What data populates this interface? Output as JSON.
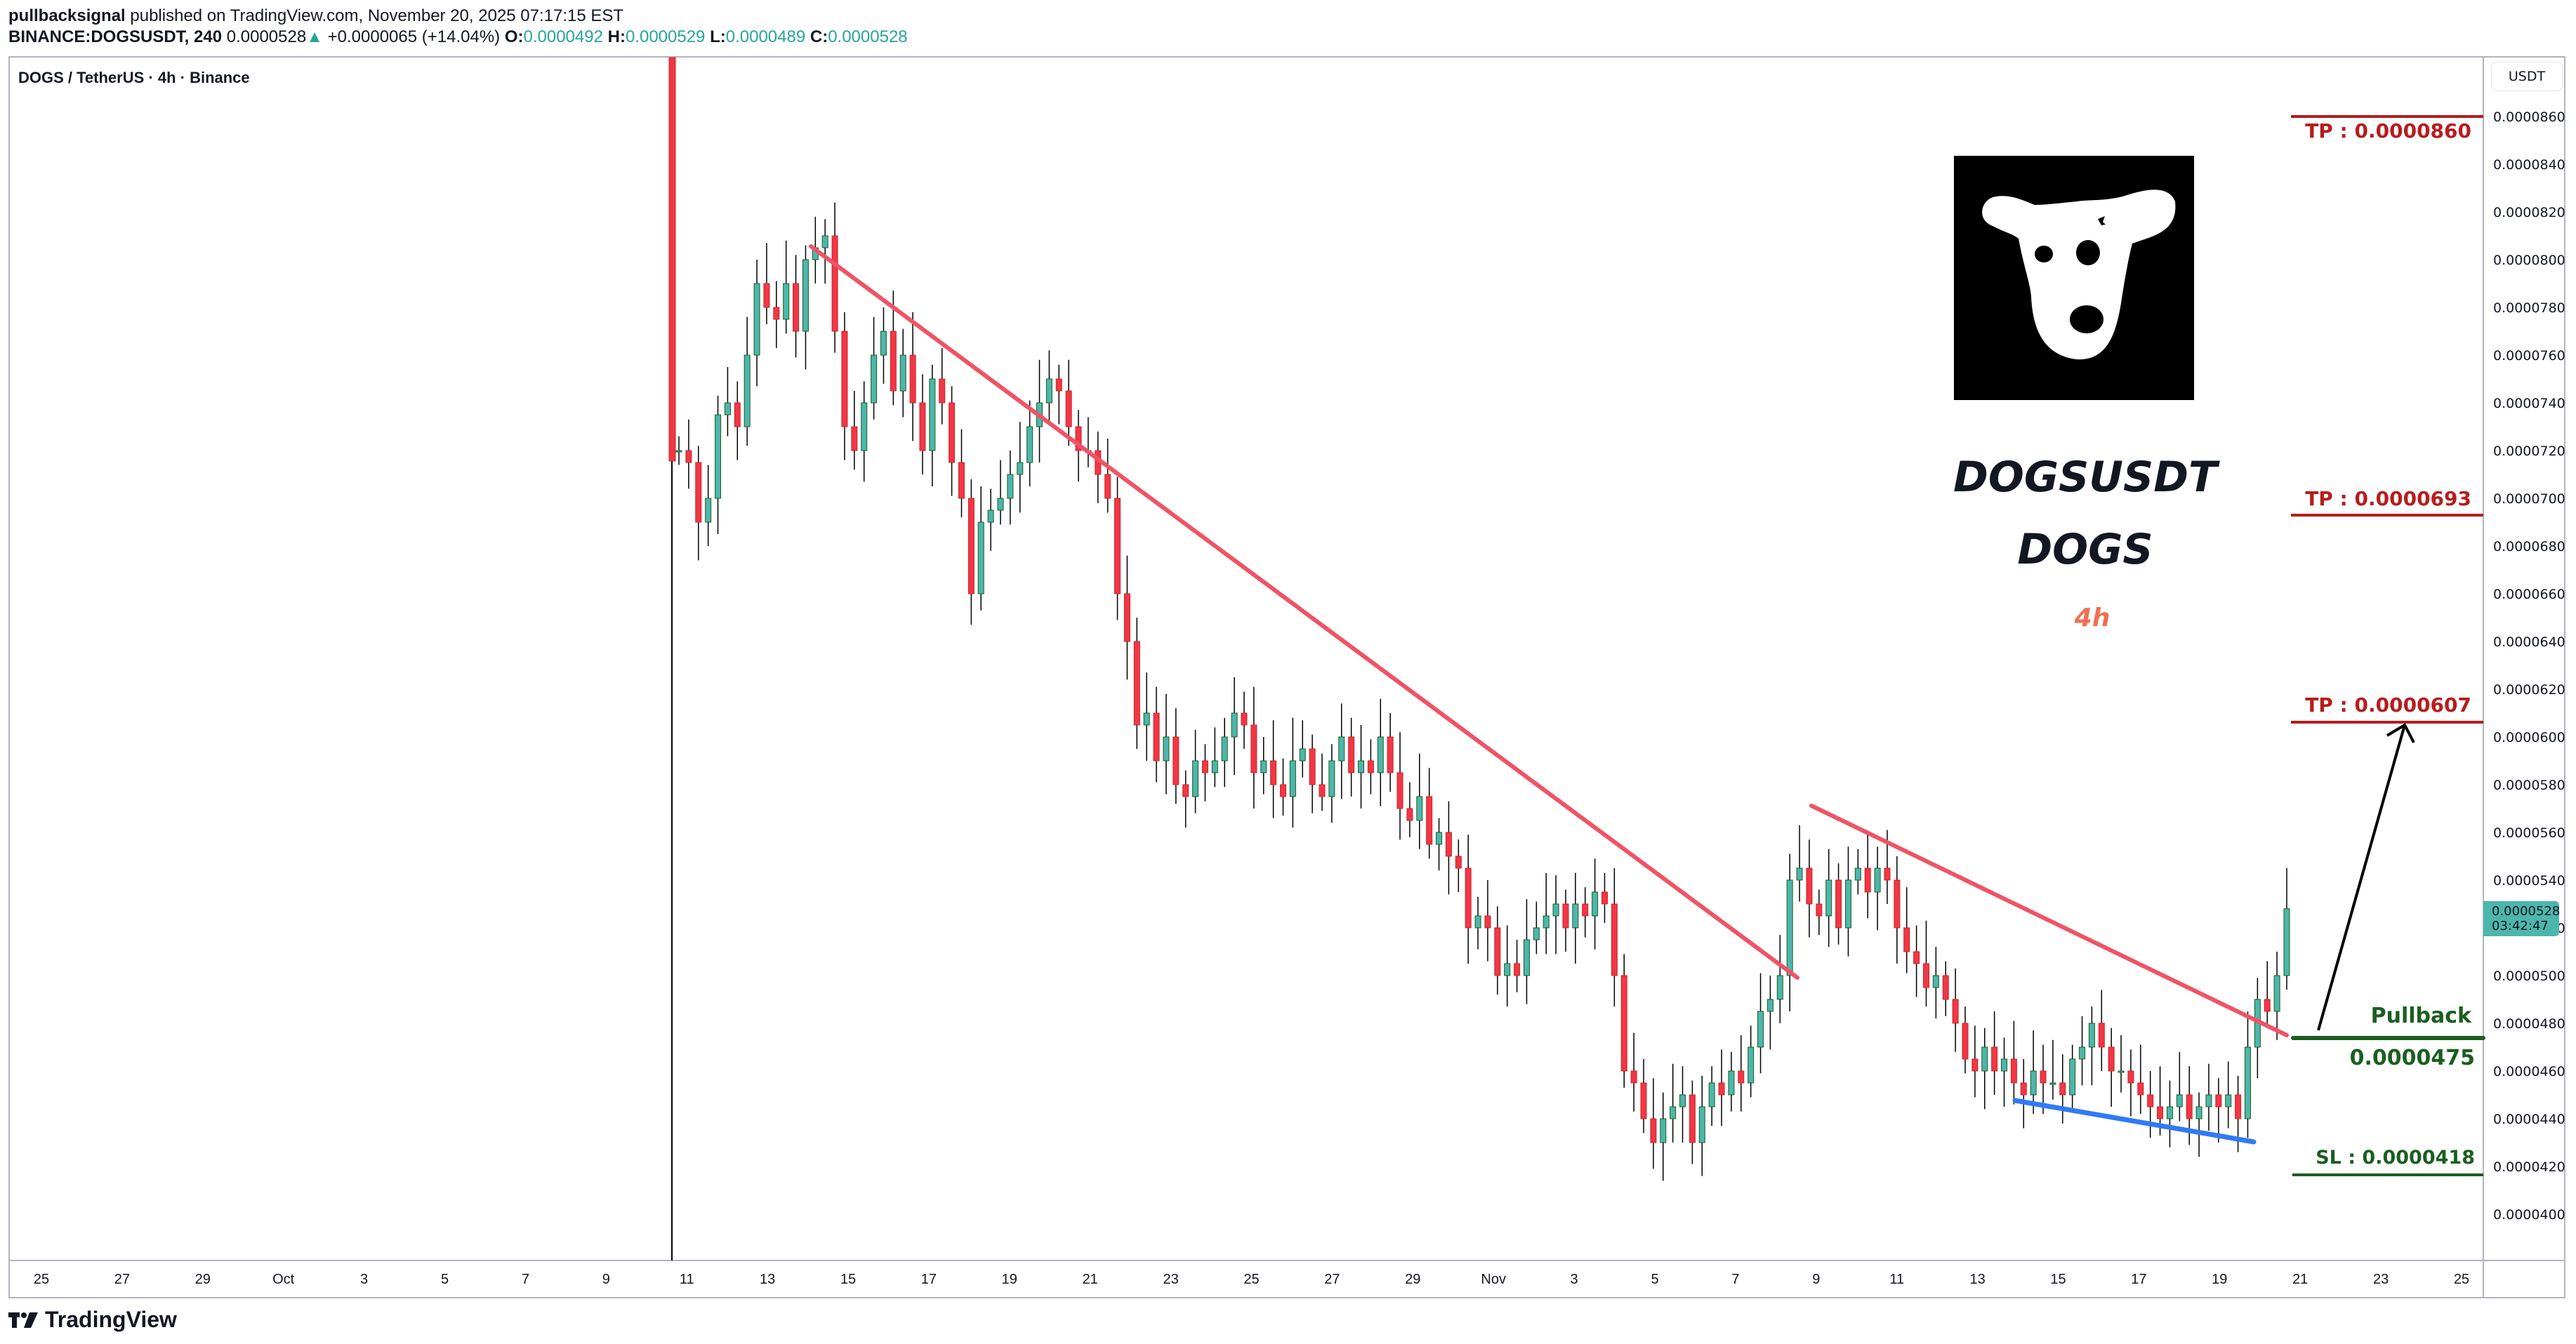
{
  "header": {
    "author": "pullbacksignal",
    "published_text": "published on TradingView.com, November 20, 2025 07:17:15 EST",
    "symbol": "BINANCE:DOGSUSDT, 240",
    "last_price": "0.0000528",
    "change_arrow": "▲",
    "change": "+0.0000065 (+14.04%)",
    "o_label": "O:",
    "o": "0.0000492",
    "h_label": "H:",
    "h": "0.0000529",
    "l_label": "L:",
    "l": "0.0000489",
    "c_label": "C:",
    "c": "0.0000528"
  },
  "legend": {
    "title": "DOGS / TetherUS · 4h · Binance"
  },
  "price_axis": {
    "currency": "USDT",
    "ticks": [
      "0.0000860",
      "0.0000840",
      "0.0000820",
      "0.0000800",
      "0.0000780",
      "0.0000760",
      "0.0000740",
      "0.0000720",
      "0.0000700",
      "0.0000680",
      "0.0000660",
      "0.0000640",
      "0.0000620",
      "0.0000600",
      "0.0000580",
      "0.0000560",
      "0.0000540",
      "0.0000520",
      "0.0000500",
      "0.0000480",
      "0.0000460",
      "0.0000440",
      "0.0000420",
      "0.0000400"
    ],
    "current_price": "0.0000528",
    "countdown": "03:42:47"
  },
  "time_axis": {
    "ticks": [
      "25",
      "27",
      "29",
      "Oct",
      "3",
      "5",
      "7",
      "9",
      "11",
      "13",
      "15",
      "17",
      "19",
      "21",
      "23",
      "25",
      "27",
      "29",
      "Nov",
      "3",
      "5",
      "7",
      "9",
      "11",
      "13",
      "15",
      "17",
      "19",
      "21",
      "23",
      "25"
    ]
  },
  "annotations": {
    "title_symbol": "DOGSUSDT",
    "title_name": "DOGS",
    "title_timeframe": "4h",
    "tp1": "TP : 0.0000860",
    "tp2": "TP : 0.0000693",
    "tp3": "TP : 0.0000607",
    "pullback_label": "Pullback",
    "pullback_value": "0.0000475",
    "sl": "SL : 0.0000418"
  },
  "colors": {
    "up": "#26a69a",
    "up_body": "#4db6ac",
    "down": "#f23645",
    "trendline_red": "#f05365",
    "support_blue": "#2f7bf5",
    "tp_red": "#b71c1c",
    "level_green": "#1b5e20",
    "price_tag": "#4db6ac"
  },
  "brand": {
    "name": "TradingView"
  },
  "chart_data": {
    "type": "candlestick",
    "title": "DOGS / TetherUS · 4h · Binance",
    "xlabel": "",
    "ylabel": "USDT",
    "ylim": [
      3.9e-05,
      8.7e-05
    ],
    "grid": false,
    "x_range": [
      "Sep 24",
      "Nov 26"
    ],
    "closes_1e7": [
      720,
      715,
      690,
      700,
      735,
      740,
      730,
      760,
      790,
      780,
      775,
      790,
      770,
      800,
      805,
      810,
      770,
      730,
      720,
      740,
      760,
      770,
      745,
      760,
      740,
      720,
      750,
      740,
      715,
      700,
      660,
      690,
      695,
      700,
      710,
      715,
      730,
      740,
      750,
      745,
      730,
      720,
      720,
      710,
      700,
      660,
      640,
      605,
      610,
      590,
      600,
      580,
      575,
      590,
      585,
      590,
      600,
      610,
      605,
      585,
      590,
      580,
      575,
      590,
      595,
      580,
      575,
      590,
      600,
      585,
      590,
      585,
      600,
      585,
      570,
      565,
      575,
      555,
      560,
      550,
      545,
      520,
      525,
      520,
      500,
      505,
      500,
      515,
      520,
      525,
      530,
      520,
      530,
      525,
      535,
      530,
      500,
      460,
      455,
      440,
      430,
      440,
      445,
      450,
      430,
      445,
      455,
      450,
      460,
      455,
      470,
      485,
      490,
      500,
      540,
      545,
      530,
      525,
      540,
      520,
      540,
      545,
      535,
      545,
      540,
      520,
      510,
      505,
      495,
      500,
      490,
      480,
      465,
      460,
      470,
      460,
      465,
      455,
      450,
      460,
      455,
      455,
      450,
      465,
      470,
      480,
      470,
      460,
      460,
      455,
      450,
      445,
      440,
      445,
      450,
      440,
      445,
      450,
      445,
      450,
      440,
      470,
      490,
      485,
      500,
      528
    ],
    "trendlines": [
      {
        "name": "main-downtrend",
        "from": [
          "Oct 14",
          8.05e-05
        ],
        "to": [
          "Nov 7",
          5e-05
        ],
        "color": "#f05365"
      },
      {
        "name": "wedge-resistance",
        "from": [
          "Nov 8",
          5.7e-05
        ],
        "to": [
          "Nov 20",
          4.75e-05
        ],
        "color": "#f05365"
      },
      {
        "name": "wedge-support",
        "from": [
          "Nov 13",
          4.47e-05
        ],
        "to": [
          "Nov 19",
          4.32e-05
        ],
        "color": "#2f7bf5"
      }
    ],
    "levels": [
      {
        "label": "TP",
        "value": 8.6e-05
      },
      {
        "label": "TP",
        "value": 6.93e-05
      },
      {
        "label": "TP",
        "value": 6.07e-05
      },
      {
        "label": "Pullback",
        "value": 4.75e-05
      },
      {
        "label": "SL",
        "value": 4.18e-05
      }
    ],
    "projection_arrow": {
      "from": [
        "Nov 20",
        4.75e-05
      ],
      "to": [
        "Nov 22",
        6.07e-05
      ]
    }
  }
}
